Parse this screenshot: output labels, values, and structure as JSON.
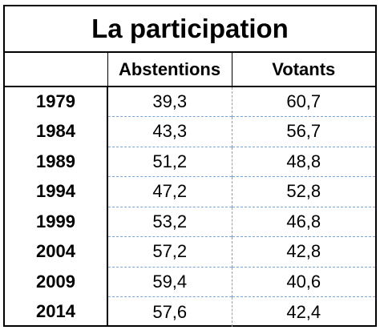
{
  "title": "La participation",
  "columns": [
    "",
    "Abstentions",
    "Votants"
  ],
  "rows": [
    {
      "year": "1979",
      "abstentions": "39,3",
      "votants": "60,7"
    },
    {
      "year": "1984",
      "abstentions": "43,3",
      "votants": "56,7"
    },
    {
      "year": "1989",
      "abstentions": "51,2",
      "votants": "48,8"
    },
    {
      "year": "1994",
      "abstentions": "47,2",
      "votants": "52,8"
    },
    {
      "year": "1999",
      "abstentions": "53,2",
      "votants": "46,8"
    },
    {
      "year": "2004",
      "abstentions": "57,2",
      "votants": "42,8"
    },
    {
      "year": "2009",
      "abstentions": "59,4",
      "votants": "40,6"
    },
    {
      "year": "2014",
      "abstentions": "57,6",
      "votants": "42,4"
    }
  ]
}
